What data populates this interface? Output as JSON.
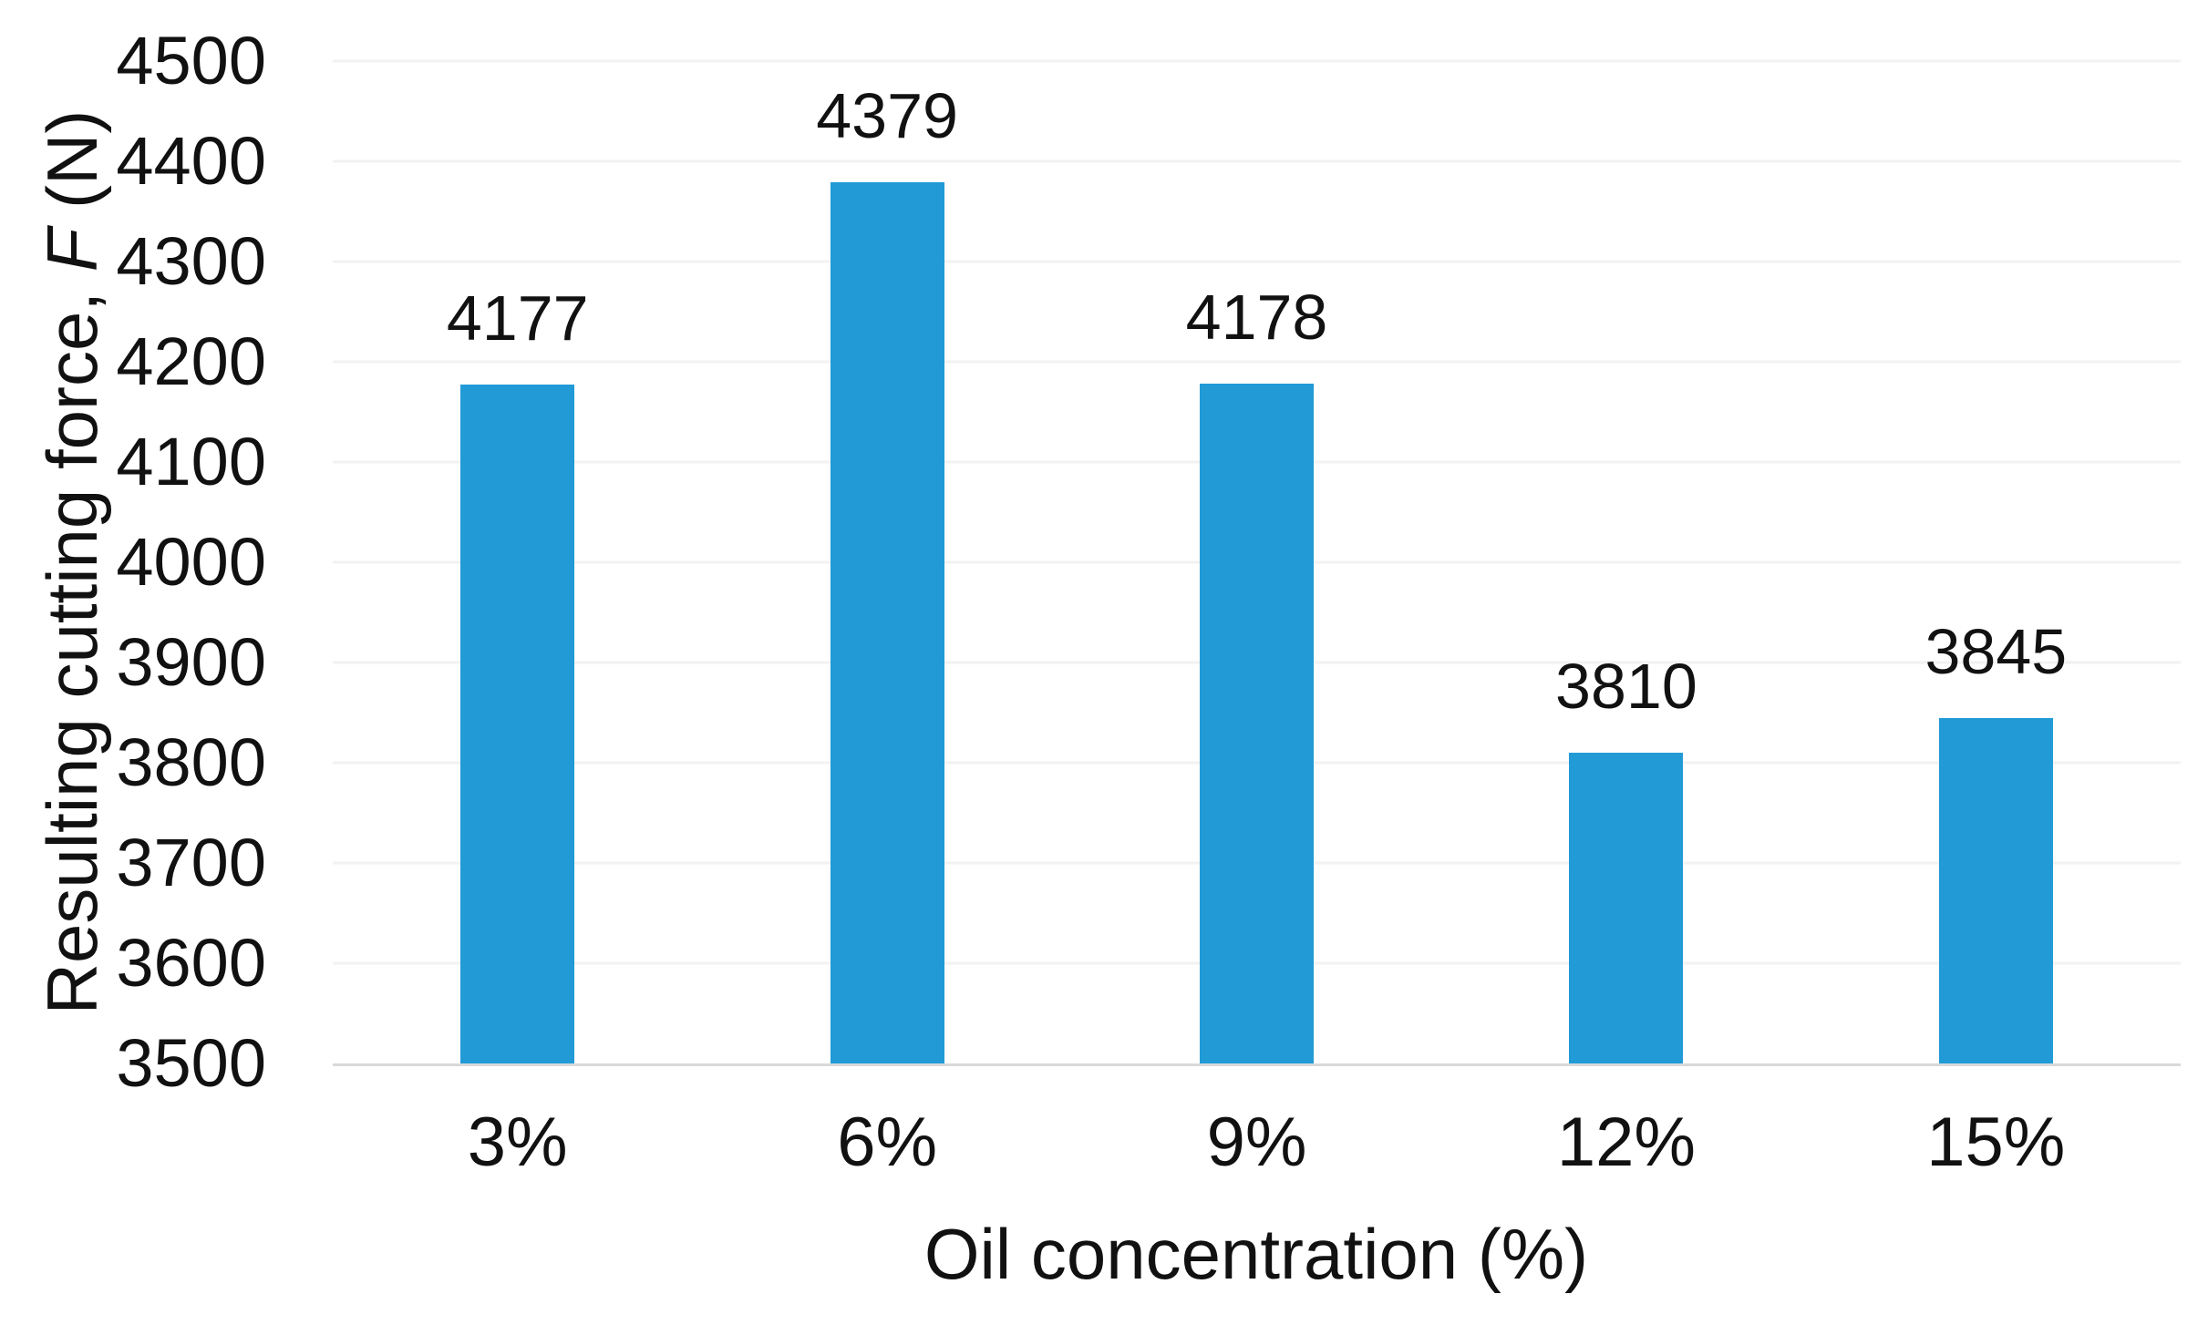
{
  "chart_data": {
    "type": "bar",
    "categories": [
      "3%",
      "6%",
      "9%",
      "12%",
      "15%"
    ],
    "values": [
      4177,
      4379,
      4178,
      3810,
      3845
    ],
    "value_labels": [
      "4177",
      "4379",
      "4178",
      "3810",
      "3845"
    ],
    "xlabel": "Oil concentration (%)",
    "ylabel_prefix": "Resulting cutting force, ",
    "ylabel_italic": "F",
    "ylabel_suffix": " (N)",
    "ylim": [
      3500,
      4500
    ],
    "ytick_step": 100,
    "yticks": [
      4500,
      4400,
      4300,
      4200,
      4100,
      4000,
      3900,
      3800,
      3700,
      3600,
      3500
    ],
    "grid": "horizontal-only",
    "legend": "none",
    "colors": {
      "bar": "#219ad6",
      "gridline": "#f2f2f2",
      "axis_line": "#d9d9d9",
      "text": "#111111",
      "background": "#ffffff"
    }
  }
}
